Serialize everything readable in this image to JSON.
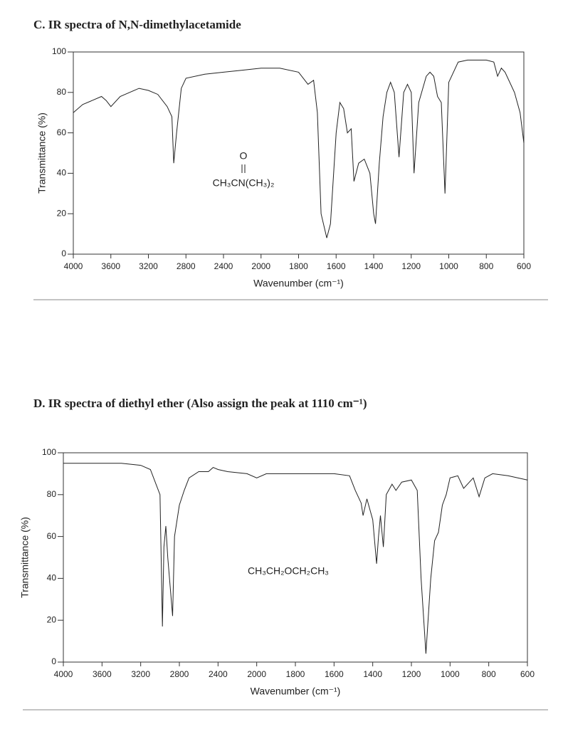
{
  "chart_data": [
    {
      "type": "line",
      "title": "C. IR spectra of N,N-dimethylacetamide",
      "xlabel": "Wavenumber (cm⁻¹)",
      "ylabel": "Transmittance (%)",
      "annotation_top": "O",
      "annotation": "CH₃CN(CH₃)₂",
      "color": "#222222",
      "xlim": [
        4000,
        600
      ],
      "xticks": [
        4000,
        3600,
        3200,
        2800,
        2400,
        2000,
        1800,
        1600,
        1400,
        1200,
        1000,
        800,
        600
      ],
      "ylim": [
        0,
        100
      ],
      "yticks": [
        0,
        20,
        40,
        60,
        80,
        100
      ],
      "x": [
        4000,
        3900,
        3800,
        3700,
        3650,
        3600,
        3500,
        3400,
        3300,
        3200,
        3100,
        3000,
        2950,
        2930,
        2900,
        2850,
        2800,
        2600,
        2400,
        2200,
        2000,
        1900,
        1800,
        1750,
        1720,
        1700,
        1680,
        1650,
        1630,
        1600,
        1580,
        1560,
        1540,
        1520,
        1505,
        1480,
        1450,
        1420,
        1400,
        1390,
        1370,
        1350,
        1330,
        1310,
        1290,
        1265,
        1240,
        1220,
        1200,
        1185,
        1160,
        1120,
        1100,
        1080,
        1060,
        1040,
        1020,
        1000,
        950,
        900,
        800,
        760,
        740,
        720,
        700,
        650,
        620,
        600
      ],
      "values": [
        70,
        74,
        76,
        78,
        76,
        73,
        78,
        80,
        82,
        81,
        79,
        73,
        68,
        45,
        60,
        82,
        87,
        89,
        90,
        91,
        92,
        92,
        90,
        84,
        86,
        70,
        20,
        8,
        15,
        60,
        75,
        72,
        60,
        62,
        36,
        45,
        47,
        40,
        20,
        15,
        45,
        68,
        80,
        85,
        80,
        48,
        80,
        84,
        80,
        40,
        75,
        88,
        90,
        88,
        78,
        75,
        30,
        85,
        95,
        96,
        96,
        95,
        88,
        92,
        90,
        80,
        70,
        55
      ]
    },
    {
      "type": "line",
      "title": "D. IR spectra of diethyl ether (Also assign the peak at 1110 cm⁻¹)",
      "xlabel": "Wavenumber (cm⁻¹)",
      "ylabel": "Transmittance (%)",
      "annotation": "CH₃CH₂OCH₂CH₃",
      "color": "#222222",
      "xlim": [
        4000,
        600
      ],
      "xticks": [
        4000,
        3600,
        3200,
        2800,
        2400,
        2000,
        1800,
        1600,
        1400,
        1200,
        1000,
        800,
        600
      ],
      "ylim": [
        0,
        100
      ],
      "yticks": [
        0,
        20,
        40,
        60,
        80,
        100
      ],
      "x": [
        4000,
        3800,
        3600,
        3400,
        3200,
        3100,
        3000,
        2975,
        2960,
        2940,
        2920,
        2870,
        2850,
        2800,
        2750,
        2700,
        2600,
        2500,
        2450,
        2400,
        2300,
        2100,
        2000,
        1950,
        1900,
        1800,
        1700,
        1600,
        1520,
        1490,
        1460,
        1450,
        1430,
        1400,
        1380,
        1370,
        1360,
        1345,
        1330,
        1300,
        1280,
        1250,
        1200,
        1170,
        1150,
        1125,
        1100,
        1080,
        1060,
        1040,
        1020,
        1000,
        960,
        930,
        900,
        880,
        850,
        820,
        780,
        700,
        600
      ],
      "values": [
        95,
        95,
        95,
        95,
        94,
        92,
        80,
        17,
        55,
        65,
        50,
        22,
        60,
        75,
        82,
        88,
        91,
        91,
        93,
        92,
        91,
        90,
        88,
        90,
        90,
        90,
        90,
        90,
        89,
        82,
        76,
        70,
        78,
        68,
        47,
        60,
        70,
        55,
        80,
        85,
        82,
        86,
        87,
        82,
        40,
        4,
        40,
        58,
        62,
        75,
        80,
        88,
        89,
        83,
        86,
        88,
        79,
        88,
        90,
        89,
        87
      ]
    }
  ]
}
